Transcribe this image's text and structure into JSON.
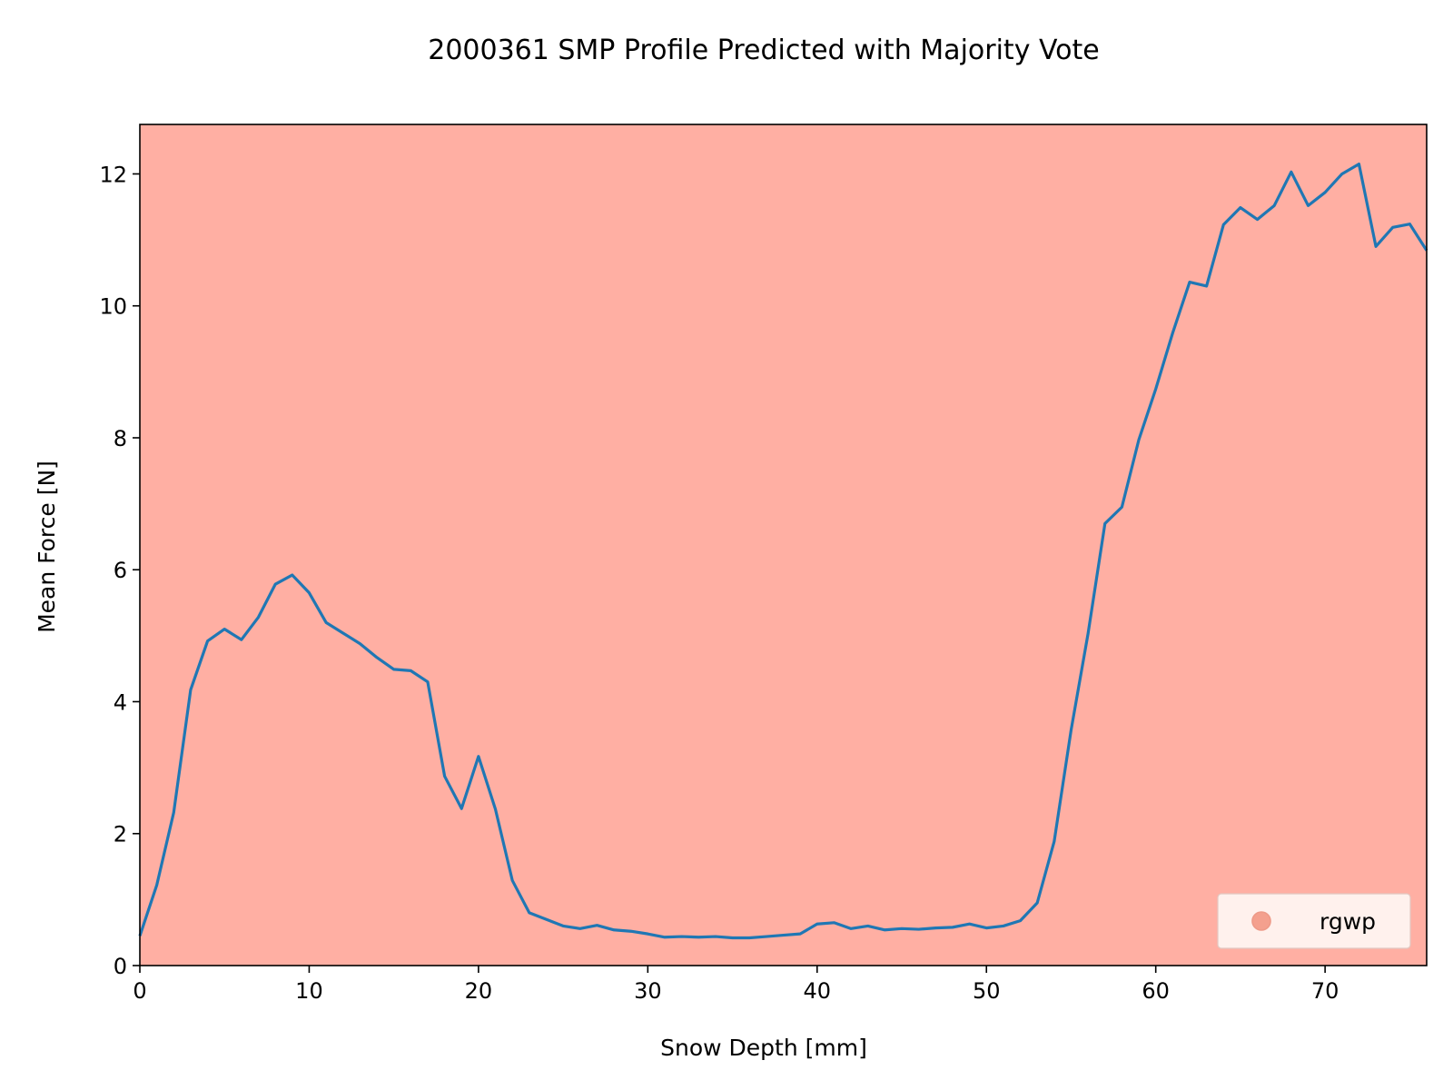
{
  "chart_data": {
    "type": "line",
    "title": "2000361 SMP Profile Predicted with Majority Vote",
    "xlabel": "Snow Depth [mm]",
    "ylabel": "Mean Force [N]",
    "xlim": [
      0,
      76
    ],
    "ylim": [
      0,
      12.75
    ],
    "xticks": [
      0,
      10,
      20,
      30,
      40,
      50,
      60,
      70
    ],
    "yticks": [
      0,
      2,
      4,
      6,
      8,
      10,
      12
    ],
    "grid": false,
    "background_class": "rgwp",
    "background_color": "#ffafa3",
    "line_color": "#1f77b4",
    "legend": {
      "placement": "bottom-right",
      "entries": [
        {
          "label": "rgwp",
          "color": "#f4a08e",
          "marker": "circle"
        }
      ]
    },
    "series": [
      {
        "x": [
          0,
          1,
          2,
          3,
          4,
          5,
          6,
          7,
          8,
          9,
          10,
          11,
          12,
          13,
          14,
          15,
          16,
          17,
          18,
          19,
          20,
          21,
          22,
          23,
          24,
          25,
          26,
          27,
          28,
          29,
          30,
          31,
          32,
          33,
          34,
          35,
          36,
          37,
          38,
          39,
          40,
          41,
          42,
          43,
          44,
          45,
          46,
          47,
          48,
          49,
          50,
          51,
          52,
          53,
          54,
          55,
          56,
          57,
          58,
          59,
          60,
          61,
          62,
          63,
          64,
          65,
          66,
          67,
          68,
          69,
          70,
          71,
          72,
          73,
          74,
          75,
          76
        ],
        "y": [
          0.45,
          1.22,
          2.32,
          4.18,
          4.92,
          5.1,
          4.94,
          5.28,
          5.78,
          5.92,
          5.65,
          5.2,
          5.04,
          4.88,
          4.67,
          4.49,
          4.47,
          4.3,
          2.87,
          2.38,
          3.17,
          2.37,
          1.29,
          0.8,
          0.7,
          0.6,
          0.56,
          0.61,
          0.54,
          0.52,
          0.48,
          0.43,
          0.44,
          0.43,
          0.44,
          0.42,
          0.42,
          0.44,
          0.46,
          0.48,
          0.63,
          0.65,
          0.56,
          0.6,
          0.54,
          0.56,
          0.55,
          0.57,
          0.58,
          0.63,
          0.57,
          0.6,
          0.68,
          0.95,
          1.88,
          3.57,
          5.03,
          6.7,
          6.95,
          7.97,
          8.74,
          9.59,
          10.36,
          10.3,
          11.23,
          11.49,
          11.31,
          11.52,
          12.03,
          11.52,
          11.72,
          12.0,
          12.15,
          10.9,
          11.19,
          11.24,
          10.84
        ]
      }
    ]
  }
}
